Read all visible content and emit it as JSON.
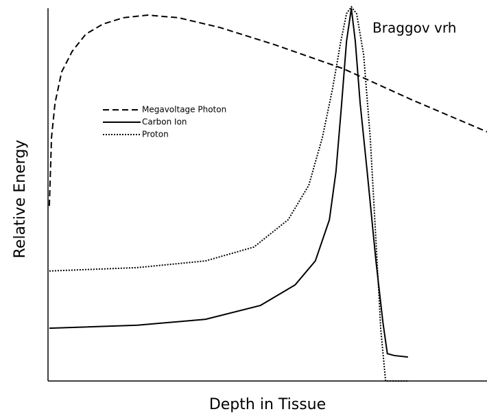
{
  "chart_data": {
    "type": "line",
    "annotation": "Braggov vrh",
    "xlabel": "Depth in Tissue",
    "ylabel": "Relative Energy",
    "xlim": [
      0,
      100
    ],
    "ylim": [
      0,
      100
    ],
    "grid": false,
    "legend": "upper left",
    "series": [
      {
        "name": "Megavoltage Photon",
        "color": "#000000",
        "line_style": "dashed",
        "x": [
          0.3,
          0.8,
          1.6,
          3.1,
          5.5,
          8.6,
          12.5,
          17.2,
          22.7,
          29.7,
          39.1,
          51.6,
          67.2,
          82.8,
          100
        ],
        "values": [
          46.8,
          65.1,
          74.3,
          82.6,
          88.1,
          92.7,
          95.4,
          97.1,
          97.8,
          97.1,
          94.5,
          89.9,
          83.5,
          75.2,
          66.6
        ]
      },
      {
        "name": "Carbon Ion",
        "color": "#000000",
        "line_style": "solid",
        "x": [
          0.3,
          20.3,
          35.9,
          48.4,
          56.3,
          60.9,
          64.1,
          65.6,
          66.9,
          68.0,
          69.1,
          70.0,
          71.1,
          72.7,
          74.7,
          76.3,
          77.3,
          78.9,
          82.0
        ],
        "values": [
          14.1,
          14.9,
          16.5,
          20.2,
          25.7,
          32.1,
          43.1,
          56.0,
          74.3,
          90.8,
          99.6,
          90.8,
          74.3,
          56.0,
          32.1,
          15.6,
          7.3,
          6.8,
          6.4
        ]
      },
      {
        "name": "Proton",
        "color": "#000000",
        "line_style": "dotted",
        "x": [
          0.3,
          20.3,
          35.9,
          46.9,
          54.7,
          59.4,
          62.5,
          64.8,
          66.7,
          68.0,
          69.1,
          70.3,
          71.9,
          73.4,
          74.7,
          75.8,
          76.9,
          82.0
        ],
        "values": [
          29.4,
          30.3,
          32.1,
          35.8,
          43.1,
          52.3,
          65.1,
          78.0,
          90.8,
          98.2,
          100,
          98.2,
          87.2,
          65.1,
          37.6,
          13.8,
          0,
          0
        ]
      }
    ]
  }
}
